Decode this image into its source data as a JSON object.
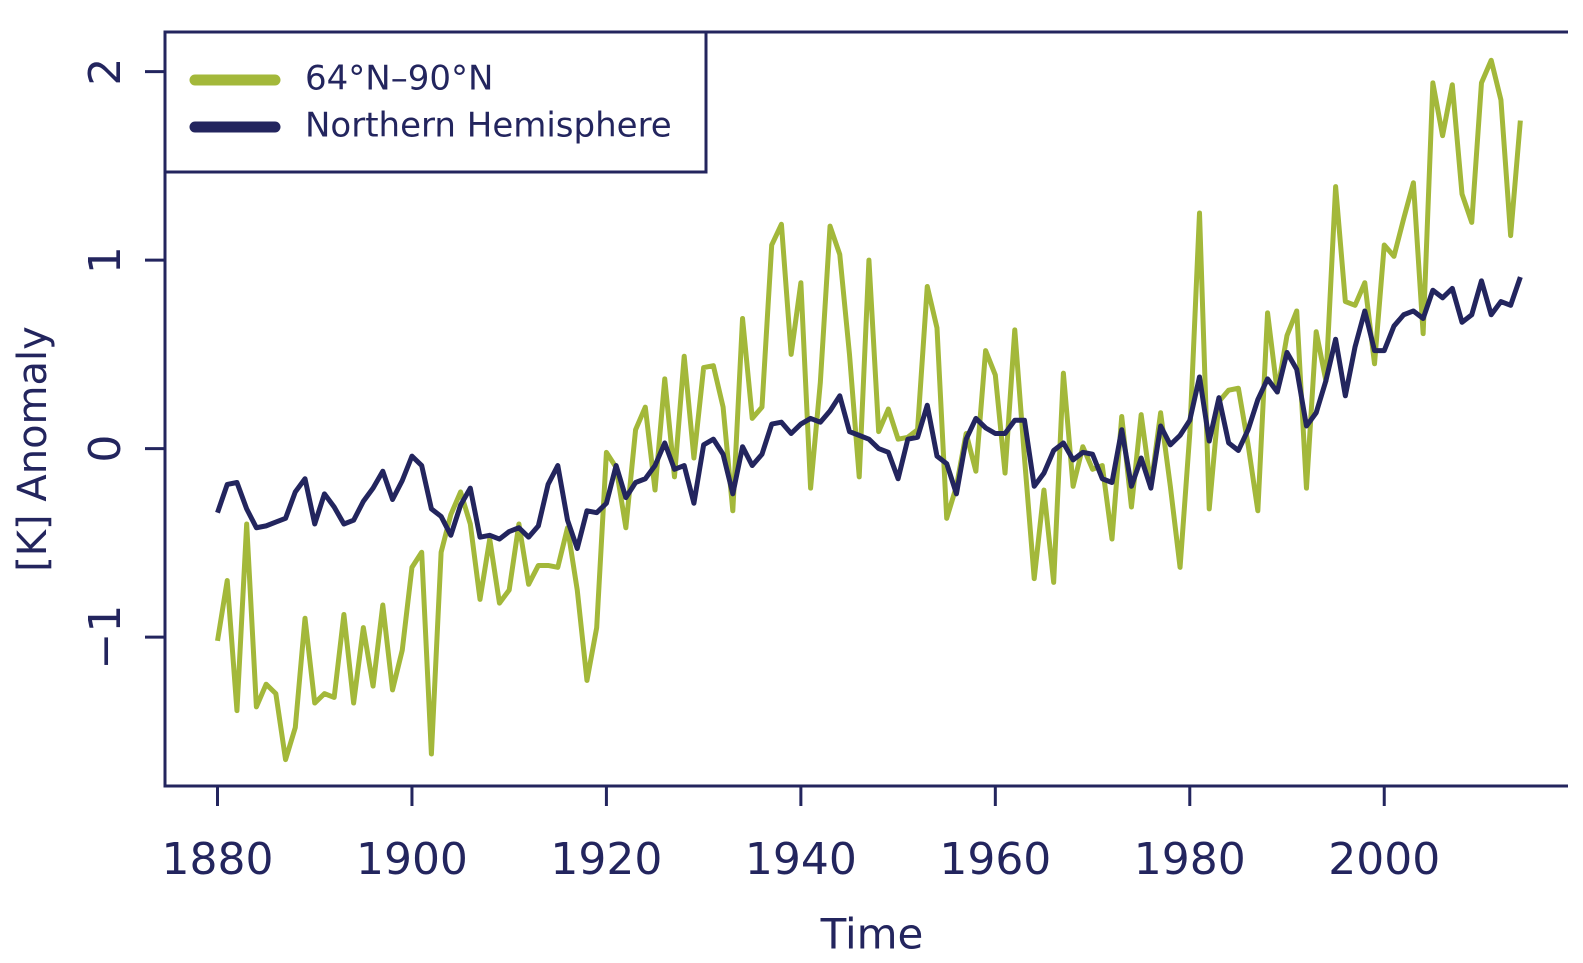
{
  "chart_data": {
    "type": "line",
    "xlabel": "Time",
    "ylabel": "[K] Anomaly",
    "x": [
      1880,
      1881,
      1882,
      1883,
      1884,
      1885,
      1886,
      1887,
      1888,
      1889,
      1890,
      1891,
      1892,
      1893,
      1894,
      1895,
      1896,
      1897,
      1898,
      1899,
      1900,
      1901,
      1902,
      1903,
      1904,
      1905,
      1906,
      1907,
      1908,
      1909,
      1910,
      1911,
      1912,
      1913,
      1914,
      1915,
      1916,
      1917,
      1918,
      1919,
      1920,
      1921,
      1922,
      1923,
      1924,
      1925,
      1926,
      1927,
      1928,
      1929,
      1930,
      1931,
      1932,
      1933,
      1934,
      1935,
      1936,
      1937,
      1938,
      1939,
      1940,
      1941,
      1942,
      1943,
      1944,
      1945,
      1946,
      1947,
      1948,
      1949,
      1950,
      1951,
      1952,
      1953,
      1954,
      1955,
      1956,
      1957,
      1958,
      1959,
      1960,
      1961,
      1962,
      1963,
      1964,
      1965,
      1966,
      1967,
      1968,
      1969,
      1970,
      1971,
      1972,
      1973,
      1974,
      1975,
      1976,
      1977,
      1978,
      1979,
      1980,
      1981,
      1982,
      1983,
      1984,
      1985,
      1986,
      1987,
      1988,
      1989,
      1990,
      1991,
      1992,
      1993,
      1994,
      1995,
      1996,
      1997,
      1998,
      1999,
      2000,
      2001,
      2002,
      2003,
      2004,
      2005,
      2006,
      2007,
      2008,
      2009,
      2010,
      2011,
      2012,
      2013,
      2014
    ],
    "series": [
      {
        "name": "64°N–90°N",
        "color": "#a3b83a",
        "values": [
          -1.02,
          -0.7,
          -1.39,
          -0.4,
          -1.37,
          -1.25,
          -1.3,
          -1.65,
          -1.48,
          -0.9,
          -1.35,
          -1.3,
          -1.32,
          -0.88,
          -1.35,
          -0.95,
          -1.26,
          -0.83,
          -1.28,
          -1.07,
          -0.63,
          -0.55,
          -1.62,
          -0.55,
          -0.35,
          -0.23,
          -0.4,
          -0.8,
          -0.48,
          -0.82,
          -0.75,
          -0.4,
          -0.72,
          -0.62,
          -0.62,
          -0.63,
          -0.42,
          -0.75,
          -1.23,
          -0.95,
          -0.02,
          -0.1,
          -0.42,
          0.1,
          0.22,
          -0.22,
          0.37,
          -0.15,
          0.49,
          -0.05,
          0.43,
          0.44,
          0.22,
          -0.33,
          0.69,
          0.16,
          0.22,
          1.08,
          1.19,
          0.5,
          0.88,
          -0.21,
          0.35,
          1.18,
          1.03,
          0.5,
          -0.15,
          1.0,
          0.09,
          0.21,
          0.05,
          0.06,
          0.1,
          0.86,
          0.64,
          -0.37,
          -0.2,
          0.08,
          -0.12,
          0.52,
          0.39,
          -0.13,
          0.63,
          -0.05,
          -0.69,
          -0.22,
          -0.71,
          0.4,
          -0.2,
          0.01,
          -0.11,
          -0.09,
          -0.48,
          0.17,
          -0.31,
          0.18,
          -0.2,
          0.19,
          -0.2,
          -0.63,
          0.08,
          1.25,
          -0.32,
          0.25,
          0.31,
          0.32,
          0.02,
          -0.33,
          0.72,
          0.3,
          0.6,
          0.73,
          -0.21,
          0.62,
          0.36,
          1.39,
          0.78,
          0.76,
          0.88,
          0.45,
          1.08,
          1.02,
          1.22,
          1.41,
          0.61,
          1.94,
          1.66,
          1.93,
          1.35,
          1.2,
          1.94,
          2.06,
          1.85,
          1.13,
          1.74
        ]
      },
      {
        "name": "Northern Hemisphere",
        "color": "#23255e",
        "values": [
          -0.34,
          -0.19,
          -0.18,
          -0.32,
          -0.42,
          -0.41,
          -0.39,
          -0.37,
          -0.23,
          -0.16,
          -0.4,
          -0.24,
          -0.31,
          -0.4,
          -0.38,
          -0.28,
          -0.21,
          -0.12,
          -0.27,
          -0.17,
          -0.04,
          -0.09,
          -0.32,
          -0.36,
          -0.46,
          -0.3,
          -0.21,
          -0.47,
          -0.46,
          -0.48,
          -0.44,
          -0.42,
          -0.47,
          -0.41,
          -0.19,
          -0.09,
          -0.38,
          -0.53,
          -0.33,
          -0.34,
          -0.29,
          -0.09,
          -0.26,
          -0.18,
          -0.16,
          -0.09,
          0.03,
          -0.11,
          -0.09,
          -0.29,
          0.02,
          0.05,
          -0.03,
          -0.24,
          0.01,
          -0.09,
          -0.03,
          0.13,
          0.14,
          0.08,
          0.13,
          0.16,
          0.14,
          0.2,
          0.28,
          0.09,
          0.07,
          0.05,
          0.0,
          -0.02,
          -0.16,
          0.05,
          0.06,
          0.23,
          -0.04,
          -0.08,
          -0.24,
          0.05,
          0.16,
          0.11,
          0.08,
          0.08,
          0.15,
          0.15,
          -0.2,
          -0.13,
          -0.01,
          0.03,
          -0.06,
          -0.02,
          -0.03,
          -0.16,
          -0.18,
          0.1,
          -0.2,
          -0.05,
          -0.21,
          0.12,
          0.02,
          0.07,
          0.15,
          0.38,
          0.04,
          0.27,
          0.03,
          -0.01,
          0.1,
          0.26,
          0.37,
          0.3,
          0.51,
          0.42,
          0.12,
          0.19,
          0.36,
          0.58,
          0.28,
          0.54,
          0.73,
          0.52,
          0.52,
          0.65,
          0.71,
          0.73,
          0.69,
          0.84,
          0.8,
          0.85,
          0.67,
          0.71,
          0.89,
          0.71,
          0.78,
          0.76,
          0.91
        ]
      }
    ],
    "xlim": [
      1874.6,
      2018.9
    ],
    "xticks": [
      1880,
      1900,
      1920,
      1940,
      1960,
      1980,
      2000
    ],
    "ylim": [
      -1.79,
      2.21
    ],
    "yticks": [
      {
        "value": -1,
        "label": "−1"
      },
      0,
      1,
      2
    ],
    "legend": "top-left"
  }
}
